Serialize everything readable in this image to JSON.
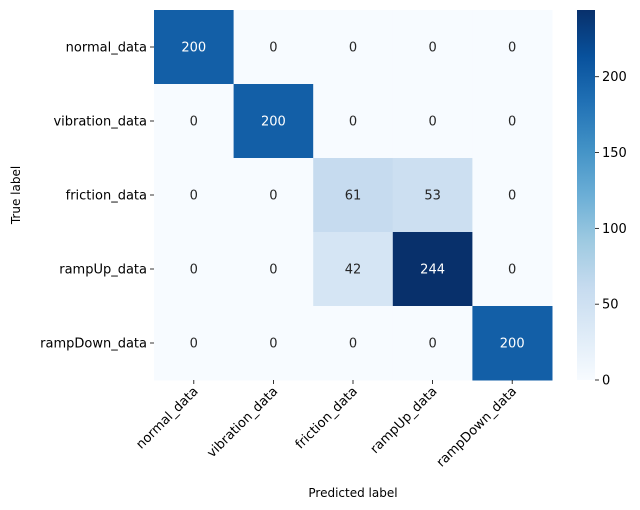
{
  "chart_data": {
    "type": "heatmap",
    "title": "",
    "xlabel": "Predicted label",
    "ylabel": "True label",
    "row_labels": [
      "normal_data",
      "vibration_data",
      "friction_data",
      "rampUp_data",
      "rampDown_data"
    ],
    "col_labels": [
      "normal_data",
      "vibration_data",
      "friction_data",
      "rampUp_data",
      "rampDown_data"
    ],
    "values": [
      [
        200,
        0,
        0,
        0,
        0
      ],
      [
        0,
        200,
        0,
        0,
        0
      ],
      [
        0,
        0,
        61,
        53,
        0
      ],
      [
        0,
        0,
        42,
        244,
        0
      ],
      [
        0,
        0,
        0,
        0,
        200
      ]
    ],
    "colormap": "Blues",
    "colorbar": {
      "min": 0,
      "max": 244,
      "ticks": [
        0,
        50,
        100,
        150,
        200
      ]
    },
    "tick_rotation_x": 45,
    "colors": {
      "low": "#f7fbff",
      "high": "#08306b",
      "light_text": "#ffffff",
      "dark_text": "#262626"
    }
  }
}
